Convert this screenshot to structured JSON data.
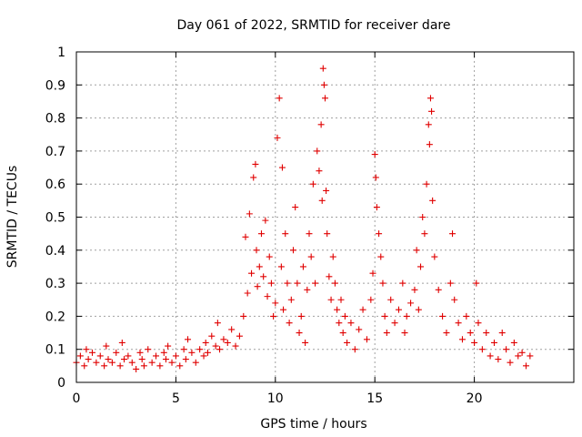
{
  "chart_data": {
    "type": "scatter",
    "title": "Day 061 of 2022, SRMTID for receiver dare",
    "xlabel": "GPS time / hours",
    "ylabel": "SRMTID / TECUs",
    "xlim": [
      0,
      25
    ],
    "ylim": [
      0,
      1
    ],
    "xticks": [
      0,
      5,
      10,
      15,
      20
    ],
    "yticks": [
      0,
      0.1,
      0.2,
      0.3,
      0.4,
      0.5,
      0.6,
      0.7,
      0.8,
      0.9,
      1
    ],
    "xtick_labels": [
      "0",
      "5",
      "10",
      "15",
      "20"
    ],
    "ytick_labels": [
      "0",
      "0.1",
      "0.2",
      "0.3",
      "0.4",
      "0.5",
      "0.6",
      "0.7",
      "0.8",
      "0.9",
      "1"
    ],
    "grid": true,
    "marker": "+",
    "color": "#e00000",
    "series": [
      {
        "name": "SRMTID",
        "x": [
          0.0,
          0.2,
          0.4,
          0.5,
          0.6,
          0.8,
          1.0,
          1.2,
          1.4,
          1.5,
          1.6,
          1.8,
          2.0,
          2.2,
          2.3,
          2.4,
          2.6,
          2.8,
          3.0,
          3.2,
          3.3,
          3.4,
          3.6,
          3.8,
          4.0,
          4.2,
          4.4,
          4.5,
          4.6,
          4.8,
          5.0,
          5.2,
          5.4,
          5.5,
          5.6,
          5.8,
          6.0,
          6.2,
          6.4,
          6.5,
          6.6,
          6.8,
          7.0,
          7.1,
          7.2,
          7.4,
          7.6,
          7.8,
          8.0,
          8.2,
          8.4,
          8.5,
          8.6,
          8.7,
          8.8,
          8.9,
          9.0,
          9.05,
          9.1,
          9.2,
          9.3,
          9.4,
          9.5,
          9.6,
          9.7,
          9.8,
          9.9,
          10.0,
          10.1,
          10.2,
          10.3,
          10.35,
          10.4,
          10.5,
          10.6,
          10.7,
          10.8,
          10.9,
          11.0,
          11.1,
          11.2,
          11.3,
          11.4,
          11.5,
          11.6,
          11.7,
          11.8,
          11.9,
          12.0,
          12.1,
          12.2,
          12.3,
          12.35,
          12.4,
          12.45,
          12.5,
          12.55,
          12.6,
          12.7,
          12.8,
          12.9,
          13.0,
          13.1,
          13.2,
          13.3,
          13.4,
          13.5,
          13.6,
          13.8,
          14.0,
          14.2,
          14.4,
          14.6,
          14.8,
          14.9,
          15.0,
          15.05,
          15.1,
          15.2,
          15.3,
          15.4,
          15.5,
          15.6,
          15.8,
          16.0,
          16.2,
          16.4,
          16.5,
          16.6,
          16.8,
          17.0,
          17.1,
          17.2,
          17.3,
          17.4,
          17.5,
          17.6,
          17.7,
          17.75,
          17.8,
          17.85,
          17.9,
          18.0,
          18.2,
          18.4,
          18.6,
          18.8,
          18.9,
          19.0,
          19.2,
          19.4,
          19.6,
          19.8,
          20.0,
          20.1,
          20.2,
          20.4,
          20.6,
          20.8,
          21.0,
          21.2,
          21.4,
          21.6,
          21.8,
          22.0,
          22.2,
          22.4,
          22.6,
          22.8
        ],
        "y": [
          0.06,
          0.08,
          0.05,
          0.1,
          0.07,
          0.09,
          0.06,
          0.08,
          0.05,
          0.11,
          0.07,
          0.06,
          0.09,
          0.05,
          0.12,
          0.07,
          0.08,
          0.06,
          0.04,
          0.09,
          0.07,
          0.05,
          0.1,
          0.06,
          0.08,
          0.05,
          0.09,
          0.07,
          0.11,
          0.06,
          0.08,
          0.05,
          0.1,
          0.07,
          0.13,
          0.09,
          0.06,
          0.1,
          0.08,
          0.12,
          0.09,
          0.14,
          0.11,
          0.18,
          0.1,
          0.13,
          0.12,
          0.16,
          0.11,
          0.14,
          0.2,
          0.44,
          0.27,
          0.51,
          0.33,
          0.62,
          0.66,
          0.4,
          0.29,
          0.35,
          0.45,
          0.32,
          0.49,
          0.26,
          0.38,
          0.3,
          0.2,
          0.24,
          0.74,
          0.86,
          0.35,
          0.65,
          0.22,
          0.45,
          0.3,
          0.18,
          0.25,
          0.4,
          0.53,
          0.3,
          0.15,
          0.2,
          0.35,
          0.12,
          0.28,
          0.45,
          0.38,
          0.6,
          0.3,
          0.7,
          0.64,
          0.78,
          0.55,
          0.95,
          0.9,
          0.86,
          0.58,
          0.45,
          0.32,
          0.25,
          0.38,
          0.3,
          0.22,
          0.18,
          0.25,
          0.15,
          0.2,
          0.12,
          0.18,
          0.1,
          0.16,
          0.22,
          0.13,
          0.25,
          0.33,
          0.69,
          0.62,
          0.53,
          0.45,
          0.38,
          0.3,
          0.2,
          0.15,
          0.25,
          0.18,
          0.22,
          0.3,
          0.15,
          0.2,
          0.24,
          0.28,
          0.4,
          0.22,
          0.35,
          0.5,
          0.45,
          0.6,
          0.78,
          0.72,
          0.86,
          0.82,
          0.55,
          0.38,
          0.28,
          0.2,
          0.15,
          0.3,
          0.45,
          0.25,
          0.18,
          0.13,
          0.2,
          0.15,
          0.12,
          0.3,
          0.18,
          0.1,
          0.15,
          0.08,
          0.12,
          0.07,
          0.15,
          0.1,
          0.06,
          0.12,
          0.08,
          0.09,
          0.05,
          0.08
        ]
      }
    ]
  }
}
